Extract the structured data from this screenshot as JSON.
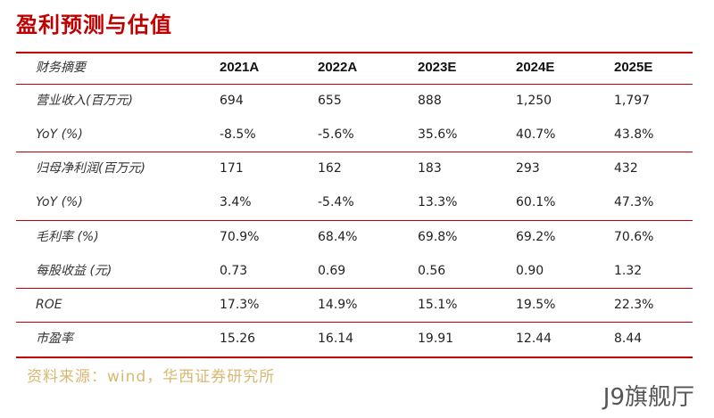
{
  "title": "盈利预测与估值",
  "table": {
    "header": {
      "label": "财务摘要",
      "years": [
        "2021A",
        "2022A",
        "2023E",
        "2024E",
        "2025E"
      ]
    },
    "rows": [
      {
        "label": "营业收入(百万元)",
        "values": [
          "694",
          "655",
          "888",
          "1,250",
          "1,797"
        ]
      },
      {
        "label": "YoY (%)",
        "values": [
          "-8.5%",
          "-5.6%",
          "35.6%",
          "40.7%",
          "43.8%"
        ]
      },
      {
        "label": "归母净利润(百万元)",
        "values": [
          "171",
          "162",
          "183",
          "293",
          "432"
        ]
      },
      {
        "label": "YoY (%)",
        "values": [
          "3.4%",
          "-5.4%",
          "13.3%",
          "60.1%",
          "47.3%"
        ]
      },
      {
        "label": "毛利率 (%)",
        "values": [
          "70.9%",
          "68.4%",
          "69.8%",
          "69.2%",
          "70.6%"
        ]
      },
      {
        "label": "每股收益 (元)",
        "values": [
          "0.73",
          "0.69",
          "0.56",
          "0.90",
          "1.32"
        ]
      },
      {
        "label": "ROE",
        "values": [
          "17.3%",
          "14.9%",
          "15.1%",
          "19.5%",
          "22.3%"
        ]
      },
      {
        "label": "市盈率",
        "values": [
          "15.26",
          "16.14",
          "19.91",
          "12.44",
          "8.44"
        ]
      }
    ]
  },
  "source": "资料来源：wind，华西证券研究所",
  "watermark": "J9旗舰厅",
  "colors": {
    "accent": "#c00000",
    "source_text": "#d8b870"
  }
}
